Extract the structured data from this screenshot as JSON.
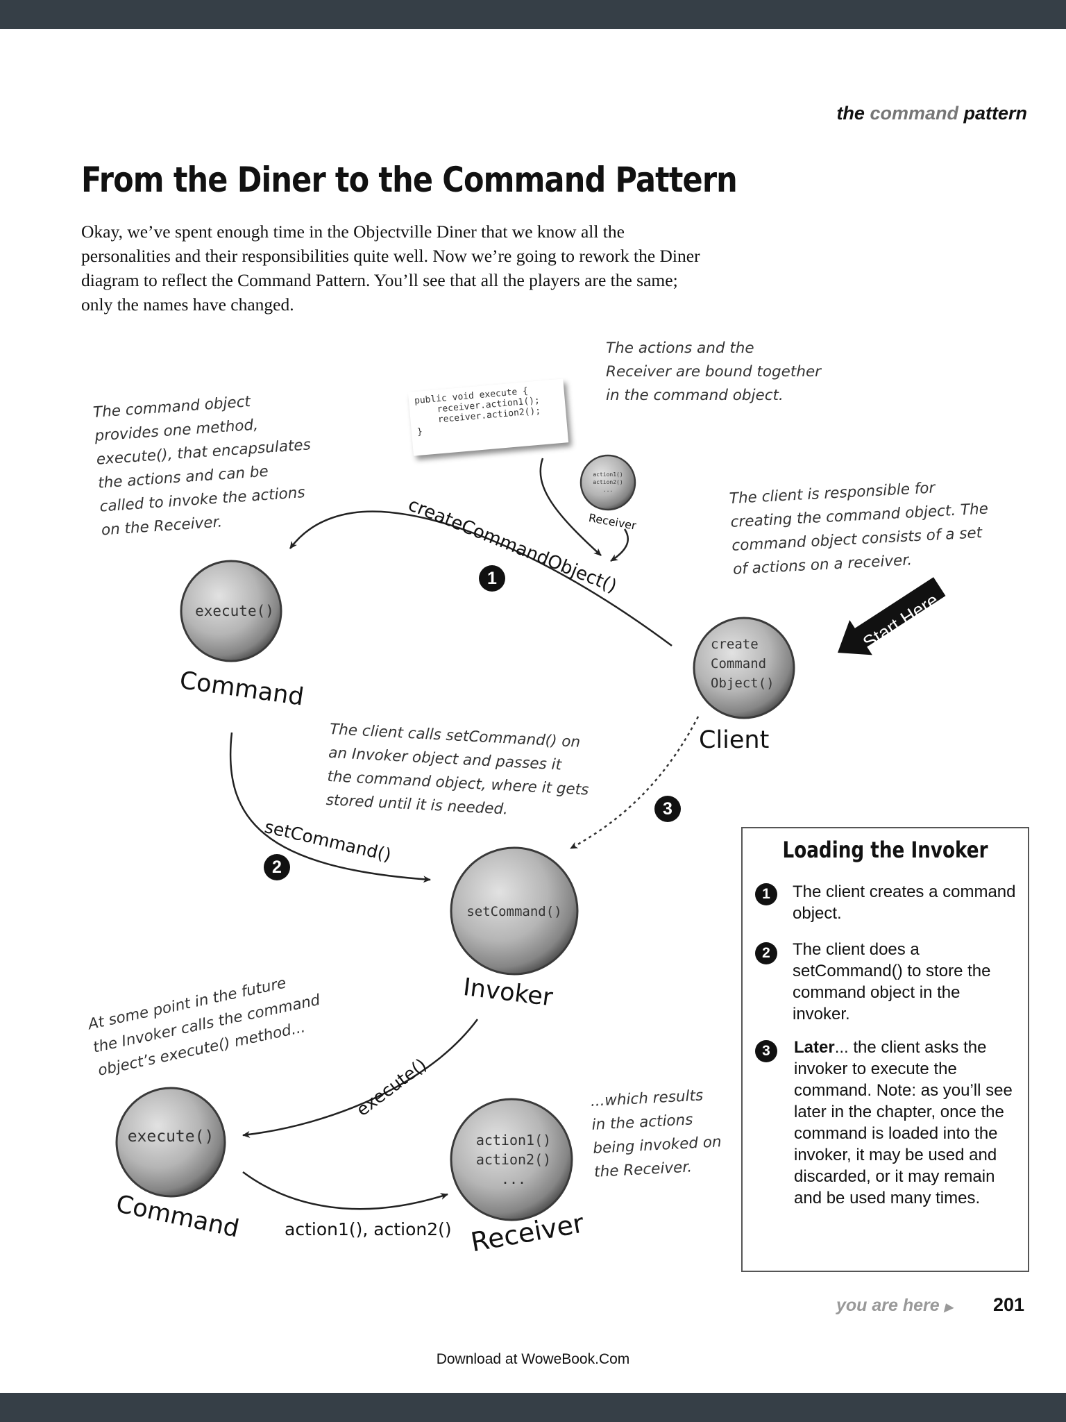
{
  "running_head": {
    "prefix": "the ",
    "highlight": "command",
    "suffix": " pattern"
  },
  "title": "From the Diner to the Command Pattern",
  "intro": "Okay, we’ve spent enough time in the Objectville Diner that we know all the personalities and their responsibilities quite well.  Now we’re going to rework the Diner diagram to reflect the Command Pattern. You’ll see that all the players are the same; only the names have changed.",
  "code_card": "public void execute {\n    receiver.action1();\n    receiver.action2();\n}",
  "notes": {
    "bound": "The actions and the\nReceiver are bound together\nin the command object.",
    "command_object": "The command object\nprovides one method,\nexecute(), that encapsulates\nthe actions and can be\ncalled to invoke the actions\non the Receiver.",
    "client_responsible": "The client is responsible for\ncreating the command object.  The\ncommand object consists of a set\nof actions on a receiver.",
    "set_command": "The client calls setCommand() on\nan Invoker object and passes it\nthe command object, where it gets\nstored until it is needed.",
    "future": "At some point in the future\nthe Invoker calls the command\nobject’s execute() method...",
    "results": "...which results\nin the actions\nbeing invoked on\nthe Receiver."
  },
  "nodes": {
    "small_receiver": {
      "methods": "action1()\naction2()\n...",
      "label": "Receiver"
    },
    "command_top": {
      "method": "execute()",
      "label": "Command"
    },
    "client": {
      "method": "create\nCommand\nObject()",
      "label": "Client"
    },
    "invoker": {
      "method": "setCommand()",
      "label": "Invoker"
    },
    "command_bottom": {
      "method": "execute()",
      "label": "Command"
    },
    "receiver": {
      "methods": "action1()\naction2()\n...",
      "label": "Receiver"
    }
  },
  "arrows": {
    "create": "createCommandObject()",
    "set": "setCommand()",
    "execute": "execute()",
    "actions": "action1(), action2()"
  },
  "badges": {
    "one": "1",
    "two": "2",
    "three": "3"
  },
  "start_here": "Start Here",
  "panel": {
    "title": "Loading the Invoker",
    "steps": [
      {
        "num": "1",
        "bold": "",
        "text": "The client creates a command object."
      },
      {
        "num": "2",
        "bold": "",
        "text": "The client does a setCommand() to store the command object in the invoker."
      },
      {
        "num": "3",
        "bold": "Later",
        "text": "... the client asks the invoker to execute the command. Note: as you’ll see later in the chapter, once the command is loaded into the invoker, it may be used and discarded, or it may remain and be used many times."
      }
    ]
  },
  "footer": {
    "you_are_here": "you are here",
    "page_number": "201",
    "download": "Download at WoweBook.Com"
  }
}
